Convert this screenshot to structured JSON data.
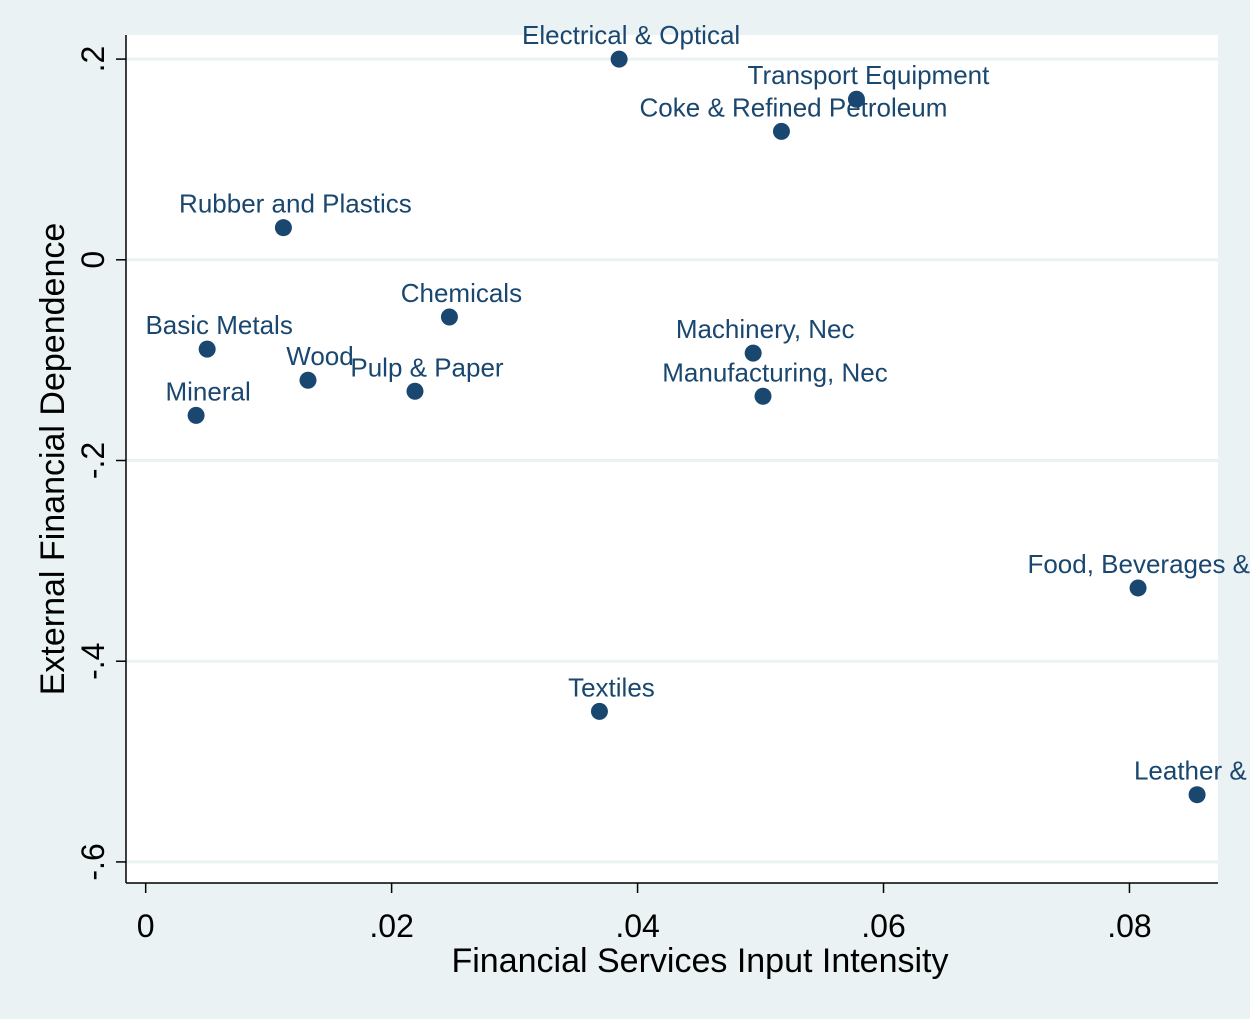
{
  "chart_data": {
    "type": "scatter",
    "x_label": "Financial Services Input Intensity",
    "y_label": "External Financial Dependence",
    "point_labels": [
      "Electrical & Optical",
      "Transport Equipment",
      "Coke & Refined Petroleum",
      "Rubber and Plastics",
      "Chemicals",
      "Basic Metals",
      "Machinery, Nec",
      "Wood",
      "Pulp & Paper",
      "Manufacturing, Nec",
      "Mineral",
      "Food, Beverages & T",
      "Textiles",
      "Leather & Fo"
    ],
    "x": [
      0.0385,
      0.0578,
      0.0517,
      0.0112,
      0.0247,
      0.005,
      0.0494,
      0.0132,
      0.0219,
      0.0502,
      0.0041,
      0.0807,
      0.0369,
      0.0855
    ],
    "series": [
      {
        "name": "External Financial Dependence",
        "color": "#1a476f",
        "values": [
          0.2,
          0.16,
          0.128,
          0.032,
          -0.057,
          -0.089,
          -0.093,
          -0.12,
          -0.131,
          -0.136,
          -0.155,
          -0.327,
          -0.45,
          -0.533
        ]
      }
    ],
    "xlim": [
      -0.0016,
      0.0872
    ],
    "ylim": [
      -0.621,
      0.224
    ],
    "xticks": [
      0,
      {
        "value": 0.02,
        "label": ".02"
      },
      {
        "value": 0.04,
        "label": ".04"
      },
      {
        "value": 0.06,
        "label": ".06"
      },
      {
        "value": 0.08,
        "label": ".08"
      }
    ],
    "yticks": [
      {
        "value": -0.6,
        "label": "-.6"
      },
      {
        "value": -0.4,
        "label": "-.4"
      },
      {
        "value": -0.2,
        "label": "-.2"
      },
      0,
      {
        "value": 0.2,
        "label": ".2"
      }
    ],
    "grid": true
  }
}
